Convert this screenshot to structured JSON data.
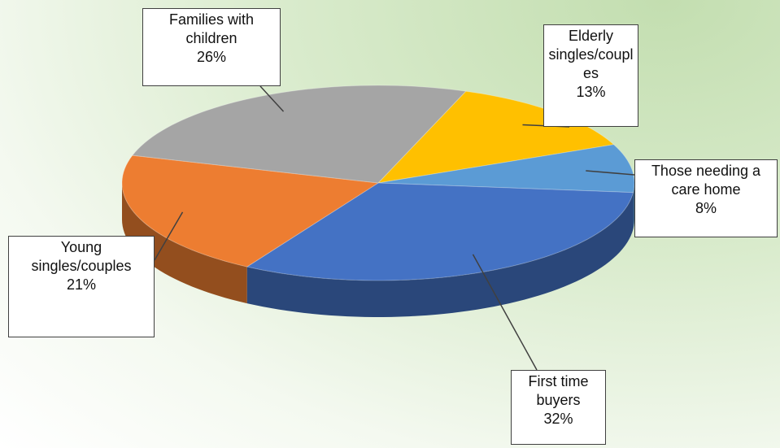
{
  "chart_data": {
    "type": "pie3d",
    "categories": [
      "Elderly singles/couples",
      "Those needing a care home",
      "First time buyers",
      "Young singles/couples",
      "Families with children"
    ],
    "values": [
      13,
      8,
      32,
      21,
      26
    ],
    "value_labels": [
      "13%",
      "8%",
      "32%",
      "21%",
      "26%"
    ],
    "colors": [
      "#ffc000",
      "#5b9bd5",
      "#4472c4",
      "#ed7d31",
      "#a5a5a5"
    ]
  }
}
